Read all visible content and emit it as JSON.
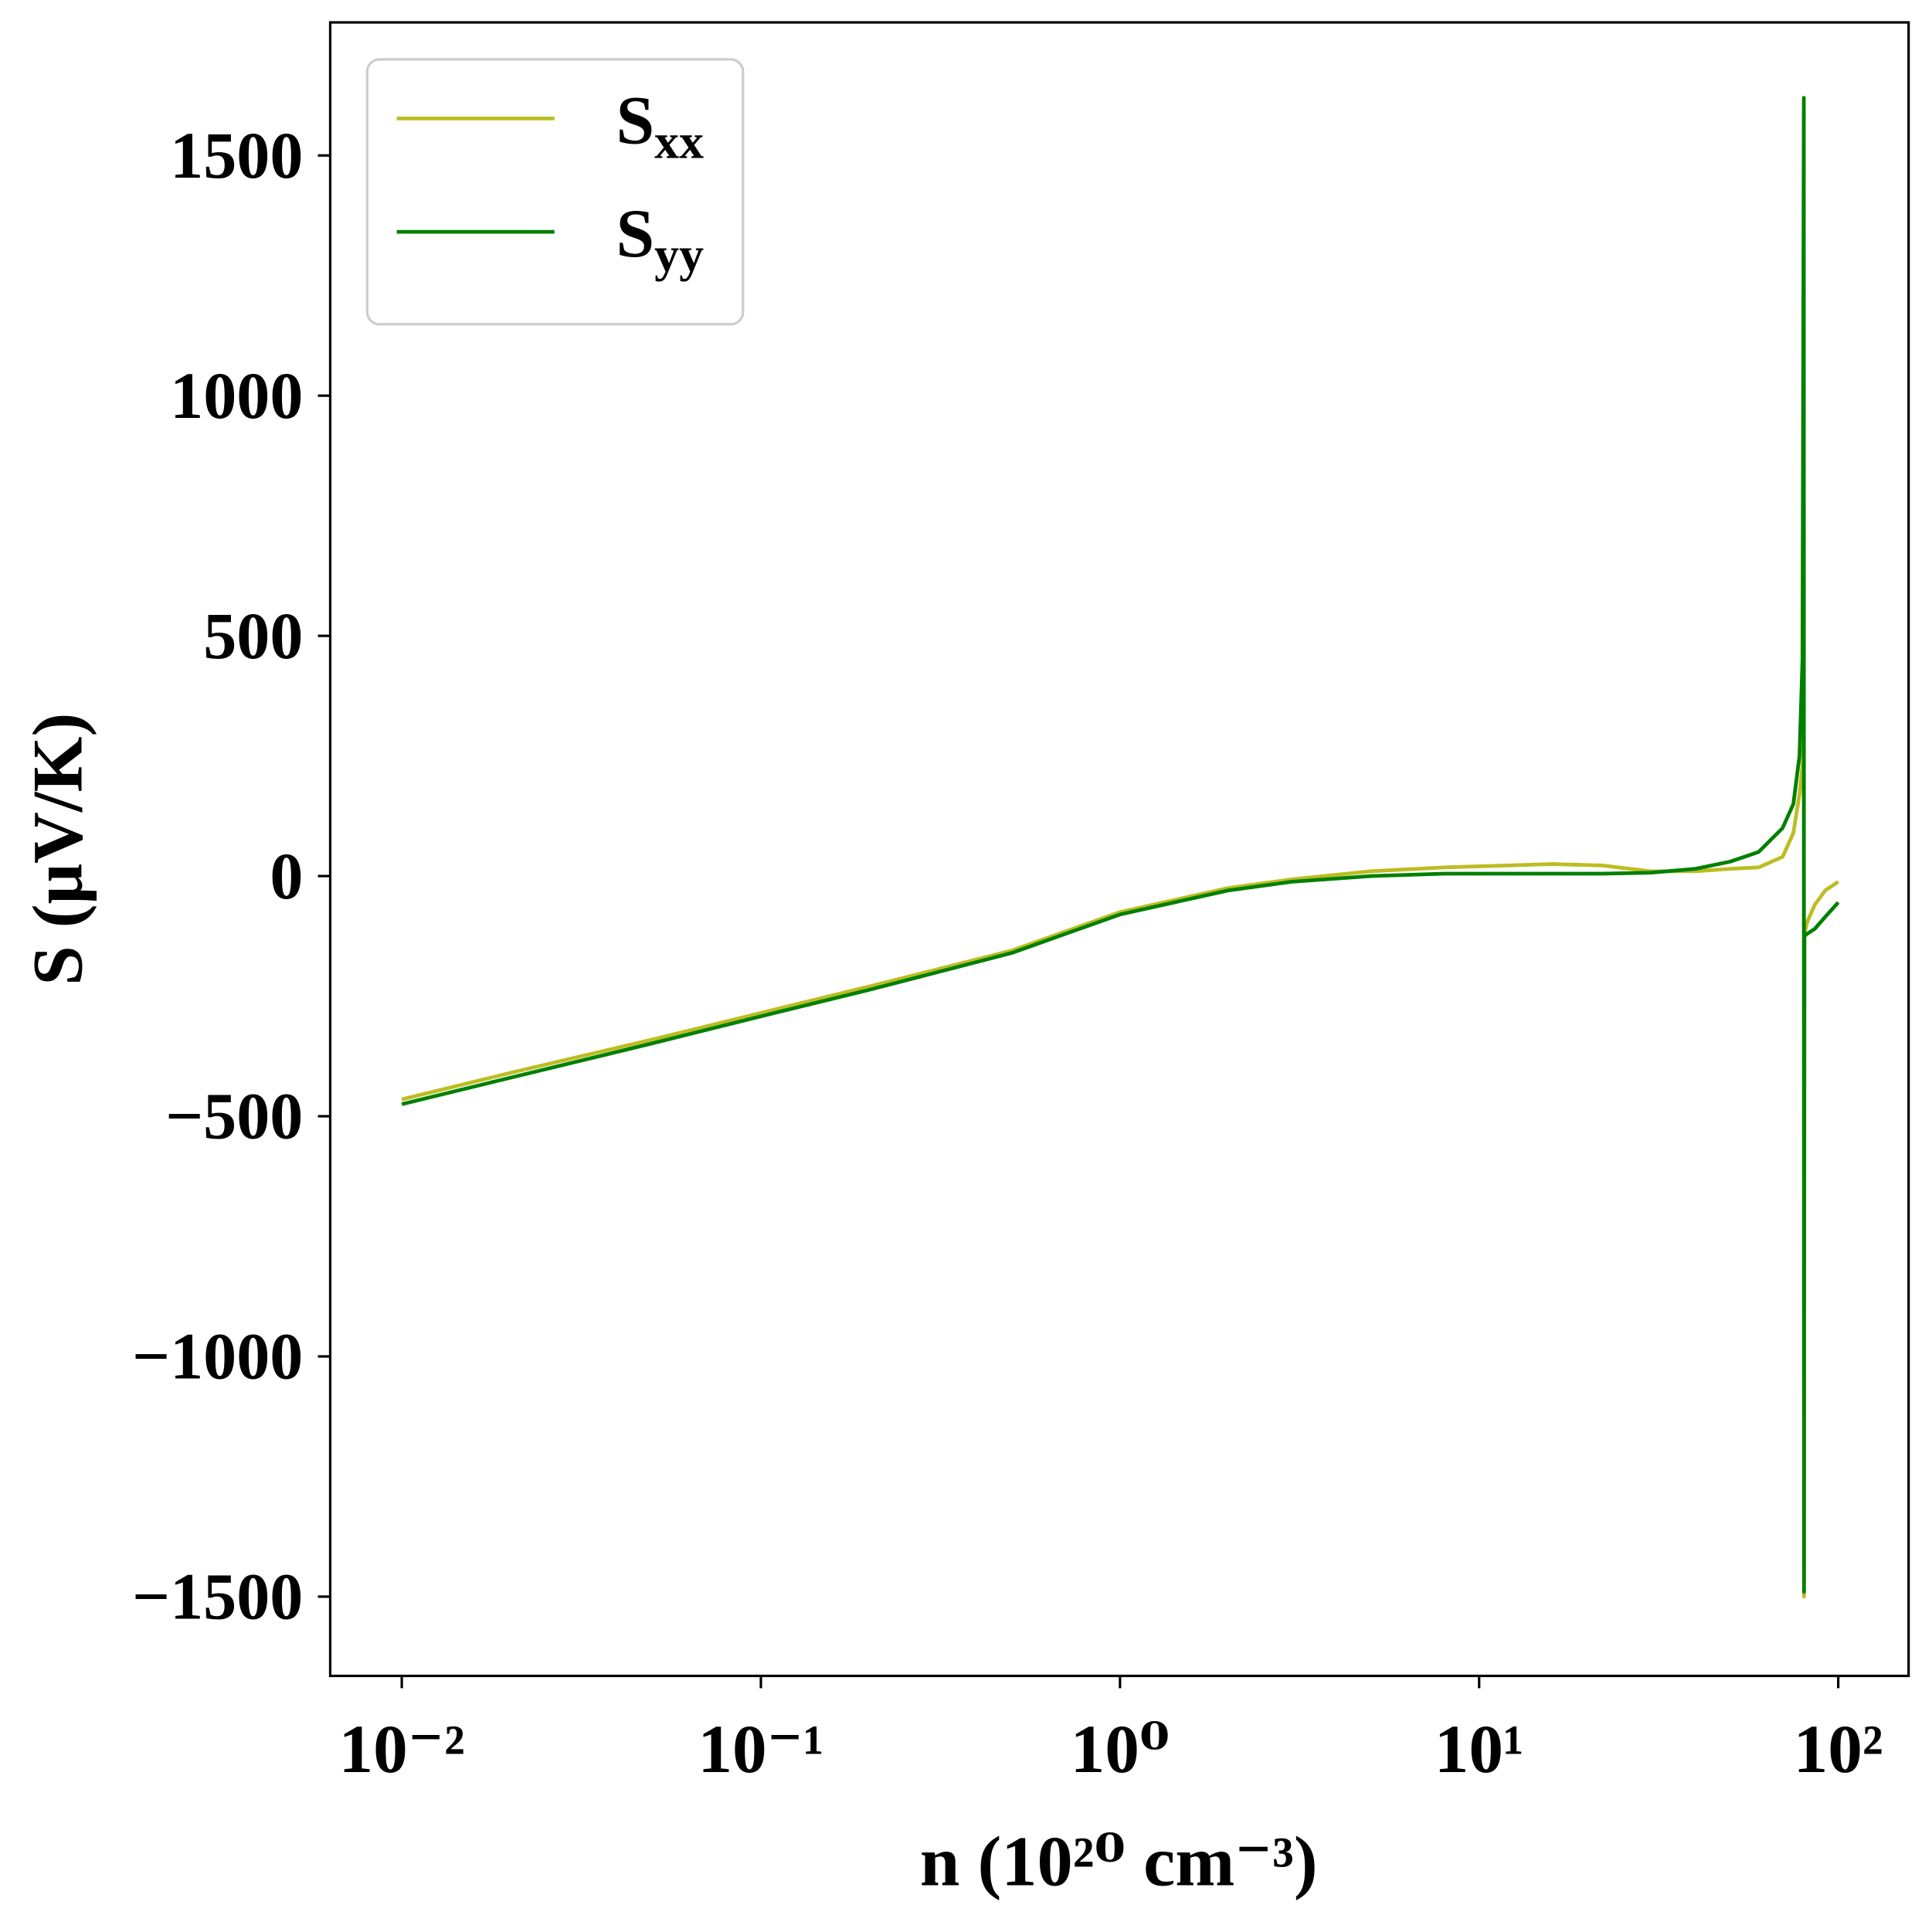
{
  "chart_data": {
    "type": "line",
    "xlabel": "n (10²⁰ cm⁻³)",
    "ylabel": "S (μV/K)",
    "x": [
      0.01,
      0.02,
      0.05,
      0.1,
      0.2,
      0.5,
      1,
      2,
      3,
      5,
      8,
      12,
      16,
      22,
      30,
      40,
      50,
      60,
      70,
      75,
      78,
      79.5,
      80.2,
      80.3,
      80.5,
      82,
      86,
      92,
      100
    ],
    "series": [
      {
        "name": "Sxx",
        "color": "#bcbd22",
        "values": [
          -465,
          -410,
          -340,
          -285,
          -230,
          -155,
          -75,
          -25,
          -7,
          10,
          18,
          22,
          25,
          22,
          10,
          10,
          15,
          18,
          40,
          90,
          170,
          230,
          300,
          -1500,
          -120,
          -95,
          -60,
          -30,
          -12
        ]
      },
      {
        "name": "Syy",
        "color": "#008000",
        "values": [
          -475,
          -420,
          -348,
          -292,
          -237,
          -160,
          -80,
          -30,
          -12,
          0,
          5,
          5,
          5,
          5,
          7,
          15,
          30,
          50,
          100,
          150,
          250,
          450,
          1620,
          -1490,
          -125,
          -120,
          -110,
          -85,
          -55
        ]
      }
    ],
    "xscale": "log",
    "xlim": [
      0.00632,
      157
    ],
    "xticks": [
      {
        "value": 0.01,
        "label": "10⁻²"
      },
      {
        "value": 0.1,
        "label": "10⁻¹"
      },
      {
        "value": 1,
        "label": "10⁰"
      },
      {
        "value": 10,
        "label": "10¹"
      },
      {
        "value": 100,
        "label": "10²"
      }
    ],
    "ylim": [
      -1665,
      1777
    ],
    "yticks": [
      {
        "value": -1500,
        "label": "−1500"
      },
      {
        "value": -1000,
        "label": "−1000"
      },
      {
        "value": -500,
        "label": "−500"
      },
      0,
      500,
      1000,
      1500
    ],
    "legend": "upper left",
    "grid": false
  }
}
